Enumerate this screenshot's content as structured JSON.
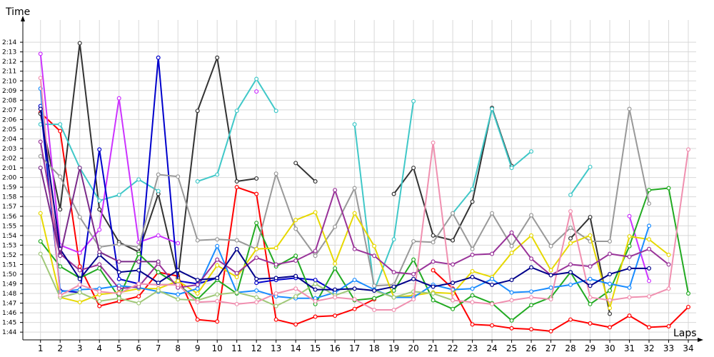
{
  "chart_data": {
    "type": "line",
    "title": "",
    "xlabel": "Laps",
    "ylabel": "Time",
    "x": [
      1,
      2,
      3,
      4,
      5,
      6,
      7,
      8,
      9,
      10,
      11,
      12,
      13,
      14,
      15,
      16,
      17,
      18,
      19,
      20,
      21,
      22,
      23,
      24,
      25,
      26,
      27,
      28,
      29,
      30,
      31,
      32,
      33,
      34
    ],
    "xlim": [
      0.1,
      34.4
    ],
    "ylim": [
      103.2,
      136.3
    ],
    "yticks": [
      104,
      105,
      106,
      107,
      108,
      109,
      110,
      111,
      112,
      113,
      114,
      115,
      116,
      117,
      118,
      119,
      120,
      121,
      122,
      123,
      124,
      125,
      126,
      127,
      128,
      129,
      130,
      131,
      132,
      133,
      134
    ],
    "ytick_labels": [
      "1:44",
      "1:45",
      "1:46",
      "1:47",
      "1:48",
      "1:49",
      "1:50",
      "1:51",
      "1:52",
      "1:53",
      "1:54",
      "1:55",
      "1:56",
      "1:57",
      "1:58",
      "1:59",
      "2:00",
      "2:01",
      "2:02",
      "2:03",
      "2:04",
      "2:05",
      "2:06",
      "2:07",
      "2:08",
      "2:09",
      "2:10",
      "2:11",
      "2:12",
      "2:13",
      "2:14"
    ],
    "grid": true,
    "legend": "none",
    "series": [
      {
        "color": "#ff0000",
        "values": [
          126.7,
          124.8,
          110.8,
          106.7,
          107.2,
          107.7,
          110.2,
          109.8,
          105.3,
          105.1,
          119.0,
          118.3,
          105.3,
          104.8,
          105.6,
          105.7,
          106.4,
          107.4,
          null,
          null,
          110.4,
          108.5,
          104.8,
          104.7,
          104.4,
          104.3,
          104.1,
          105.3,
          104.9,
          104.5,
          105.7,
          104.5,
          104.6,
          106.6
        ]
      },
      {
        "color": "#333333",
        "values": [
          126.6,
          116.7,
          133.9,
          116.7,
          113.3,
          112.3,
          118.3,
          109.6,
          126.9,
          132.4,
          119.6,
          119.9,
          null,
          121.5,
          119.6,
          null,
          null,
          null,
          118.3,
          121.0,
          114.0,
          113.5,
          117.5,
          127.2,
          121.2,
          null,
          null,
          113.7,
          115.9,
          105.9,
          null,
          null,
          null,
          null
        ]
      },
      {
        "color": "#40c8c8",
        "values": [
          125.5,
          125.5,
          121.0,
          117.6,
          118.2,
          119.8,
          118.6,
          null,
          119.6,
          120.3,
          126.9,
          130.2,
          126.9,
          null,
          null,
          null,
          125.5,
          108.3,
          113.6,
          127.9,
          null,
          116.3,
          118.8,
          127.1,
          121.0,
          122.7,
          null,
          118.2,
          121.1,
          null,
          null,
          null,
          null,
          null
        ]
      },
      {
        "color": "#cc33ff",
        "values": [
          132.8,
          113.0,
          112.2,
          114.6,
          128.2,
          113.3,
          114.0,
          113.2,
          null,
          null,
          null,
          128.9,
          null,
          null,
          null,
          null,
          null,
          null,
          null,
          null,
          null,
          null,
          null,
          null,
          null,
          null,
          null,
          null,
          null,
          null,
          116.0,
          109.3,
          null,
          null
        ]
      },
      {
        "color": "#0000cc",
        "values": [
          127.4,
          108.3,
          108.1,
          122.9,
          109.5,
          109.0,
          132.4,
          109.3,
          109.0,
          109.6,
          null,
          109.1,
          109.4,
          109.6,
          109.4,
          108.2,
          null,
          null,
          null,
          null,
          null,
          null,
          null,
          null,
          null,
          null,
          null,
          null,
          null,
          null,
          null,
          null,
          null,
          null
        ]
      },
      {
        "color": "#22aa22",
        "values": [
          113.4,
          110.8,
          109.6,
          110.6,
          107.6,
          112.1,
          110.2,
          108.9,
          107.4,
          109.4,
          108.0,
          115.3,
          110.8,
          111.9,
          106.9,
          110.6,
          107.3,
          107.5,
          108.3,
          111.5,
          107.3,
          106.4,
          107.8,
          107.0,
          105.2,
          106.8,
          107.6,
          110.2,
          106.9,
          108.3,
          112.9,
          118.7,
          118.9,
          108.0
        ]
      },
      {
        "color": "#999999",
        "values": [
          122.2,
          120.1,
          115.9,
          112.8,
          113.1,
          112.8,
          120.3,
          120.1,
          113.5,
          113.6,
          113.5,
          112.6,
          120.4,
          114.7,
          111.9,
          114.9,
          118.9,
          108.8,
          108.9,
          113.4,
          113.3,
          116.3,
          112.6,
          116.3,
          112.9,
          116.1,
          112.9,
          114.8,
          113.4,
          113.4,
          127.1,
          117.3,
          null,
          null
        ]
      },
      {
        "color": "#e6d800",
        "values": [
          116.3,
          107.6,
          107.1,
          107.9,
          108.1,
          108.5,
          108.5,
          109.3,
          108.0,
          110.9,
          109.7,
          112.6,
          112.7,
          115.6,
          116.4,
          111.1,
          116.3,
          112.9,
          107.6,
          107.8,
          108.1,
          108.0,
          110.3,
          109.7,
          112.2,
          114.0,
          110.4,
          113.2,
          114.0,
          106.5,
          113.9,
          113.6,
          112.0,
          null
        ]
      },
      {
        "color": "#1a8cff",
        "values": [
          129.2,
          108.2,
          108.4,
          108.5,
          108.8,
          108.6,
          108.2,
          107.9,
          108.5,
          112.9,
          108.1,
          108.3,
          107.7,
          107.5,
          107.5,
          108.1,
          109.4,
          108.4,
          107.6,
          107.6,
          108.9,
          108.4,
          108.5,
          109.5,
          108.1,
          108.2,
          108.6,
          108.9,
          109.5,
          109.0,
          108.6,
          115.0,
          null,
          null
        ]
      },
      {
        "color": "#a0c878",
        "values": [
          112.1,
          107.6,
          108.1,
          107.2,
          107.5,
          107.0,
          108.3,
          107.4,
          107.3,
          107.9,
          108.1,
          107.6,
          106.7,
          107.7,
          109.0,
          107.8,
          108.5,
          108.3,
          107.6,
          108.2,
          108.0,
          107.3,
          null,
          null,
          null,
          null,
          null,
          null,
          null,
          null,
          null,
          null,
          null,
          null
        ]
      },
      {
        "color": "#993399",
        "values": [
          123.7,
          112.1,
          110.4,
          111.0,
          108.5,
          108.7,
          111.1,
          108.6,
          108.9,
          111.5,
          110.1,
          111.7,
          111.0,
          111.4,
          112.4,
          118.7,
          112.6,
          111.9,
          110.2,
          110.0,
          111.3,
          111.0,
          112.0,
          112.1,
          114.3,
          111.6,
          109.9,
          111.0,
          110.8,
          112.1,
          111.8,
          112.6,
          111.0,
          null
        ]
      },
      {
        "color": "#f090b0",
        "values": [
          130.3,
          107.8,
          108.9,
          108.2,
          108.0,
          109.0,
          108.9,
          108.9,
          107.1,
          107.2,
          106.9,
          107.1,
          108.0,
          108.5,
          107.2,
          107.6,
          107.4,
          106.3,
          106.3,
          107.4,
          123.6,
          107.3,
          107.1,
          106.9,
          107.3,
          107.6,
          107.4,
          116.5,
          107.6,
          107.3,
          107.6,
          107.7,
          108.5,
          122.9
        ]
      },
      {
        "color": "#00008b",
        "values": [
          127.1,
          112.6,
          109.5,
          112.0,
          110.2,
          110.4,
          109.1,
          110.4,
          109.4,
          109.6,
          112.6,
          109.5,
          109.6,
          109.8,
          108.4,
          108.4,
          108.5,
          108.3,
          108.7,
          109.5,
          108.7,
          109.1,
          109.7,
          108.9,
          109.4,
          110.7,
          109.9,
          110.2,
          108.8,
          110.0,
          110.6,
          110.6,
          null,
          null
        ]
      },
      {
        "color": "#7b2b8a",
        "values": [
          121.0,
          111.9,
          121.0,
          112.3,
          111.3,
          111.3,
          111.3,
          null,
          null,
          null,
          null,
          null,
          null,
          null,
          null,
          null,
          null,
          null,
          null,
          null,
          null,
          null,
          null,
          null,
          null,
          null,
          null,
          null,
          null,
          null,
          null,
          null,
          null,
          null
        ]
      }
    ]
  }
}
